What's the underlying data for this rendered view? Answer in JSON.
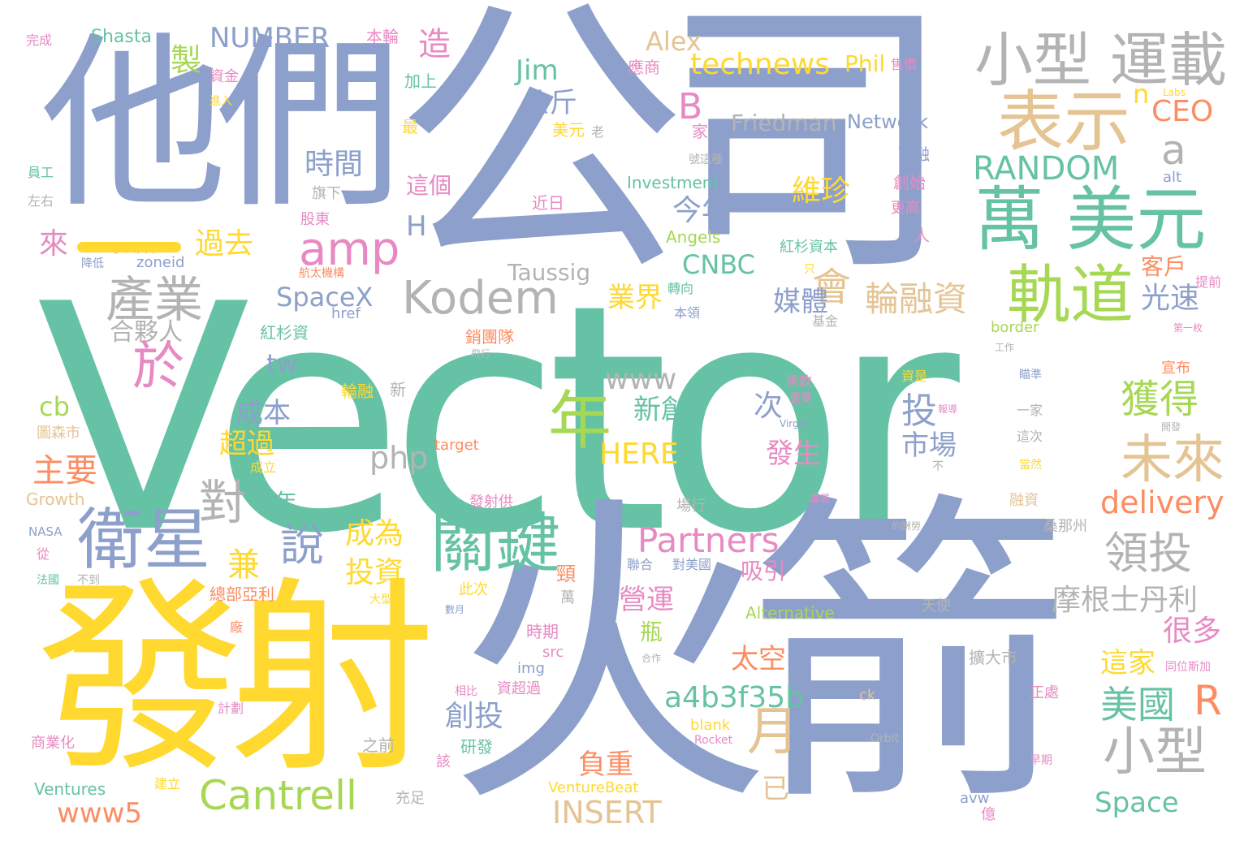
{
  "palette": {
    "green": "#66c2a5",
    "orange": "#fc8d62",
    "blue": "#8da0cb",
    "pink": "#e78ac3",
    "lime": "#a6d854",
    "yellow": "#ffd92f",
    "tan": "#e5c494",
    "gray": "#b3b3b3"
  },
  "words": [
    {
      "text": "Vector",
      "color": "green"
    },
    {
      "text": "公司",
      "color": "blue"
    },
    {
      "text": "他們",
      "color": "blue"
    },
    {
      "text": "發射",
      "color": "yellow"
    },
    {
      "text": "火箭",
      "color": "blue"
    },
    {
      "text": "小型 運載",
      "color": "gray"
    },
    {
      "text": "表示",
      "color": "tan"
    },
    {
      "text": "萬 美元",
      "color": "green"
    },
    {
      "text": "軌道",
      "color": "lime"
    },
    {
      "text": "關鍵",
      "color": "green"
    },
    {
      "text": "衛星",
      "color": "blue"
    },
    {
      "text": "產業",
      "color": "gray"
    },
    {
      "text": "Kodem",
      "color": "gray"
    },
    {
      "text": "amp",
      "color": "pink"
    },
    {
      "text": "Cantrell",
      "color": "lime"
    },
    {
      "text": "Partners",
      "color": "pink"
    },
    {
      "text": "年",
      "color": "lime"
    },
    {
      "text": "月",
      "color": "tan"
    },
    {
      "text": "小型",
      "color": "gray"
    },
    {
      "text": "未來",
      "color": "tan"
    },
    {
      "text": "獲得",
      "color": "lime"
    },
    {
      "text": "RANDOM",
      "color": "green"
    },
    {
      "text": "領投",
      "color": "gray"
    },
    {
      "text": "摩根士丹利",
      "color": "gray"
    },
    {
      "text": "美國",
      "color": "green"
    },
    {
      "text": "R",
      "color": "orange"
    },
    {
      "text": "輪融資",
      "color": "tan"
    },
    {
      "text": "會",
      "color": "tan"
    },
    {
      "text": "technews",
      "color": "yellow"
    },
    {
      "text": "NUMBER",
      "color": "blue"
    },
    {
      "text": "Alex",
      "color": "tan"
    },
    {
      "text": "Jim",
      "color": "green"
    },
    {
      "text": "B",
      "color": "pink"
    },
    {
      "text": "a",
      "color": "gray"
    },
    {
      "text": "n",
      "color": "yellow"
    },
    {
      "text": "CEO",
      "color": "orange"
    },
    {
      "text": "Friedman",
      "color": "gray"
    },
    {
      "text": "Network",
      "color": "blue"
    },
    {
      "text": "Phil",
      "color": "yellow"
    },
    {
      "text": "Shasta",
      "color": "green"
    },
    {
      "text": "www",
      "color": "gray"
    },
    {
      "text": "php",
      "color": "gray"
    },
    {
      "text": "HERE",
      "color": "yellow"
    },
    {
      "text": "delivery",
      "color": "orange"
    },
    {
      "text": "a4b3f35b",
      "color": "green"
    },
    {
      "text": "INSERT",
      "color": "tan"
    },
    {
      "text": "Space",
      "color": "green"
    },
    {
      "text": "www5",
      "color": "orange"
    },
    {
      "text": "SpaceX",
      "color": "blue"
    },
    {
      "text": "Taussig",
      "color": "gray"
    },
    {
      "text": "CNBC",
      "color": "green"
    },
    {
      "text": "tw",
      "color": "blue"
    },
    {
      "text": "cb",
      "color": "lime"
    },
    {
      "text": "H",
      "color": "blue"
    },
    {
      "text": "Investment",
      "color": "green"
    },
    {
      "text": "Angels",
      "color": "lime"
    },
    {
      "text": "Alternative",
      "color": "lime"
    },
    {
      "text": "Growth",
      "color": "tan"
    },
    {
      "text": "Ventures",
      "color": "green"
    },
    {
      "text": "VentureBeat",
      "color": "yellow"
    },
    {
      "text": "NASA",
      "color": "blue"
    },
    {
      "text": "zoneid",
      "color": "blue"
    },
    {
      "text": "href",
      "color": "blue"
    },
    {
      "text": "border",
      "color": "lime"
    },
    {
      "text": "alt",
      "color": "blue"
    },
    {
      "text": "Labs",
      "color": "yellow"
    },
    {
      "text": "target",
      "color": "orange"
    },
    {
      "text": "Virgin",
      "color": "blue"
    },
    {
      "text": "src",
      "color": "pink"
    },
    {
      "text": "img",
      "color": "blue"
    },
    {
      "text": "ck",
      "color": "tan"
    },
    {
      "text": "blank",
      "color": "yellow"
    },
    {
      "text": "Rocket",
      "color": "pink"
    },
    {
      "text": "Orbit",
      "color": "gray"
    },
    {
      "text": "avw",
      "color": "blue"
    },
    {
      "text": "時間",
      "color": "blue"
    },
    {
      "text": "公斤",
      "color": "blue"
    },
    {
      "text": "今年",
      "color": "blue"
    },
    {
      "text": "維珍",
      "color": "yellow"
    },
    {
      "text": "媒體",
      "color": "blue"
    },
    {
      "text": "光速",
      "color": "blue"
    },
    {
      "text": "客戶",
      "color": "orange"
    },
    {
      "text": "業界",
      "color": "yellow"
    },
    {
      "text": "新創",
      "color": "green"
    },
    {
      "text": "次",
      "color": "blue"
    },
    {
      "text": "投",
      "color": "blue"
    },
    {
      "text": "市場",
      "color": "blue"
    },
    {
      "text": "發生",
      "color": "pink"
    },
    {
      "text": "成本",
      "color": "blue"
    },
    {
      "text": "超過",
      "color": "yellow"
    },
    {
      "text": "主要",
      "color": "orange"
    },
    {
      "text": "對",
      "color": "gray"
    },
    {
      "text": "說",
      "color": "blue"
    },
    {
      "text": "兼",
      "color": "yellow"
    },
    {
      "text": "成為",
      "color": "yellow"
    },
    {
      "text": "投資",
      "color": "yellow"
    },
    {
      "text": "每年",
      "color": "green"
    },
    {
      "text": "於",
      "color": "pink"
    },
    {
      "text": "合夥人",
      "color": "gray"
    },
    {
      "text": "來",
      "color": "pink"
    },
    {
      "text": "過去",
      "color": "yellow"
    },
    {
      "text": "製",
      "color": "lime"
    },
    {
      "text": "造",
      "color": "pink"
    },
    {
      "text": "本輪",
      "color": "pink"
    },
    {
      "text": "資金",
      "color": "pink"
    },
    {
      "text": "完成",
      "color": "pink"
    },
    {
      "text": "進入",
      "color": "yellow"
    },
    {
      "text": "員工",
      "color": "green"
    },
    {
      "text": "左右",
      "color": "gray"
    },
    {
      "text": "多人共眾",
      "color": "orange"
    },
    {
      "text": "降低",
      "color": "blue"
    },
    {
      "text": "航太機構",
      "color": "orange"
    },
    {
      "text": "股東",
      "color": "pink"
    },
    {
      "text": "旗下",
      "color": "gray"
    },
    {
      "text": "這個",
      "color": "pink"
    },
    {
      "text": "最",
      "color": "yellow"
    },
    {
      "text": "加上",
      "color": "green"
    },
    {
      "text": "應商",
      "color": "pink"
    },
    {
      "text": "售價",
      "color": "pink"
    },
    {
      "text": "美元",
      "color": "yellow"
    },
    {
      "text": "老",
      "color": "gray"
    },
    {
      "text": "近日",
      "color": "pink"
    },
    {
      "text": "家",
      "color": "pink"
    },
    {
      "text": "號這種",
      "color": "gray"
    },
    {
      "text": "已融",
      "color": "blue"
    },
    {
      "text": "創始",
      "color": "pink"
    },
    {
      "text": "更高",
      "color": "pink"
    },
    {
      "text": "人",
      "color": "pink"
    },
    {
      "text": "紅杉資本",
      "color": "green"
    },
    {
      "text": "只",
      "color": "yellow"
    },
    {
      "text": "提前",
      "color": "pink"
    },
    {
      "text": "轉向",
      "color": "green"
    },
    {
      "text": "本領",
      "color": "blue"
    },
    {
      "text": "基金",
      "color": "gray"
    },
    {
      "text": "紅杉資",
      "color": "green"
    },
    {
      "text": "銷團隊",
      "color": "orange"
    },
    {
      "text": "飛行",
      "color": "gray"
    },
    {
      "text": "工作",
      "color": "gray"
    },
    {
      "text": "第一枚",
      "color": "pink"
    },
    {
      "text": "宣布",
      "color": "orange"
    },
    {
      "text": "瞄準",
      "color": "blue"
    },
    {
      "text": "輪融",
      "color": "yellow"
    },
    {
      "text": "新",
      "color": "gray"
    },
    {
      "text": "兩款",
      "color": "pink"
    },
    {
      "text": "重要",
      "color": "pink"
    },
    {
      "text": "資是",
      "color": "yellow"
    },
    {
      "text": "報導",
      "color": "pink"
    },
    {
      "text": "一家",
      "color": "gray"
    },
    {
      "text": "開發",
      "color": "gray"
    },
    {
      "text": "這次",
      "color": "gray"
    },
    {
      "text": "不",
      "color": "gray"
    },
    {
      "text": "當然",
      "color": "yellow"
    },
    {
      "text": "圖森市",
      "color": "tan"
    },
    {
      "text": "成立",
      "color": "yellow"
    },
    {
      "text": "發射供",
      "color": "pink"
    },
    {
      "text": "場行",
      "color": "gray"
    },
    {
      "text": "雲層",
      "color": "pink"
    },
    {
      "text": "融資",
      "color": "tan"
    },
    {
      "text": "的酬勞",
      "color": "gray"
    },
    {
      "text": "桑那州",
      "color": "gray"
    },
    {
      "text": "從",
      "color": "pink"
    },
    {
      "text": "法國",
      "color": "green"
    },
    {
      "text": "不到",
      "color": "gray"
    },
    {
      "text": "總部亞利",
      "color": "orange"
    },
    {
      "text": "此次",
      "color": "yellow"
    },
    {
      "text": "大型",
      "color": "yellow"
    },
    {
      "text": "數月",
      "color": "blue"
    },
    {
      "text": "頸",
      "color": "orange"
    },
    {
      "text": "萬",
      "color": "gray"
    },
    {
      "text": "聯合",
      "color": "blue"
    },
    {
      "text": "對美國",
      "color": "blue"
    },
    {
      "text": "吸引",
      "color": "pink"
    },
    {
      "text": "營運",
      "color": "pink"
    },
    {
      "text": "廠",
      "color": "orange"
    },
    {
      "text": "時期",
      "color": "pink"
    },
    {
      "text": "瓶",
      "color": "lime"
    },
    {
      "text": "太空",
      "color": "orange"
    },
    {
      "text": "合作",
      "color": "gray"
    },
    {
      "text": "天使",
      "color": "gray"
    },
    {
      "text": "擴大市",
      "color": "gray"
    },
    {
      "text": "同位斯加",
      "color": "pink"
    },
    {
      "text": "這家",
      "color": "yellow"
    },
    {
      "text": "很多",
      "color": "pink"
    },
    {
      "text": "創投",
      "color": "blue"
    },
    {
      "text": "負重",
      "color": "orange"
    },
    {
      "text": "已",
      "color": "tan"
    },
    {
      "text": "計劃",
      "color": "pink"
    },
    {
      "text": "相比",
      "color": "pink"
    },
    {
      "text": "資超過",
      "color": "pink"
    },
    {
      "text": "正處",
      "color": "pink"
    },
    {
      "text": "商業化",
      "color": "pink"
    },
    {
      "text": "之前",
      "color": "gray"
    },
    {
      "text": "研發",
      "color": "green"
    },
    {
      "text": "該",
      "color": "pink"
    },
    {
      "text": "早期",
      "color": "pink"
    },
    {
      "text": "建立",
      "color": "yellow"
    },
    {
      "text": "充足",
      "color": "gray"
    },
    {
      "text": "億",
      "color": "pink"
    }
  ]
}
